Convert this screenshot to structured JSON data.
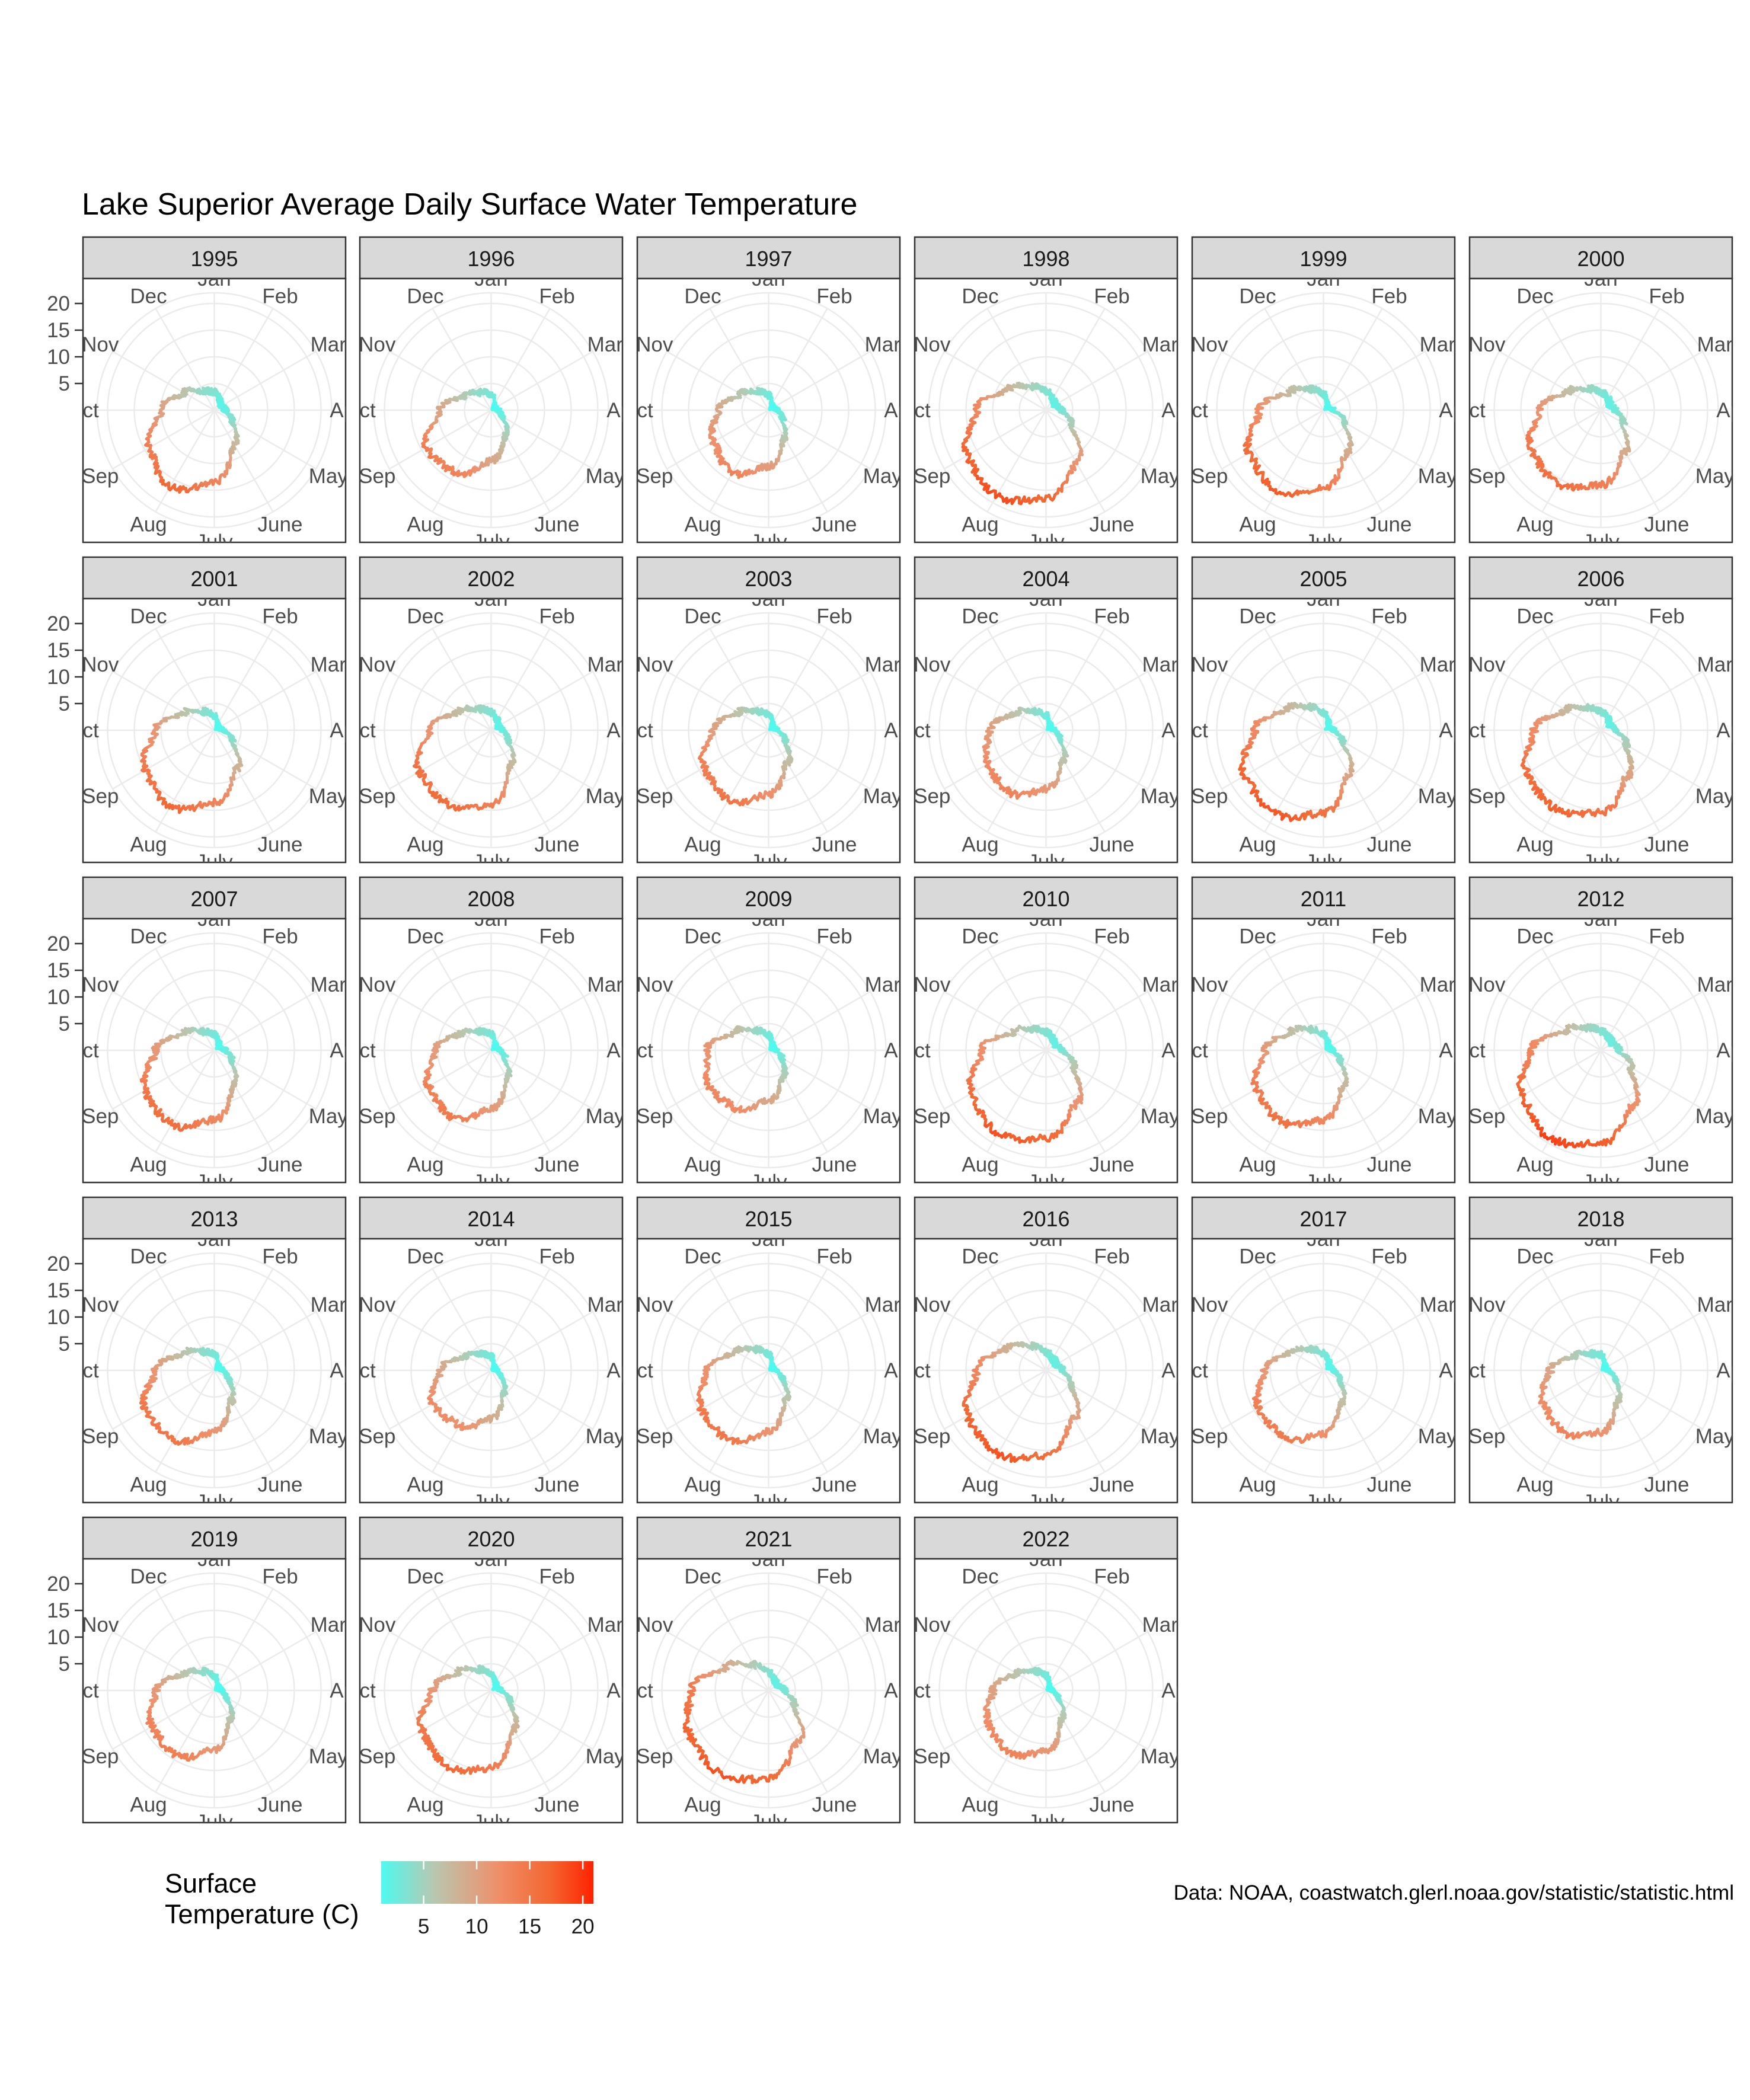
{
  "chart_data": {
    "type": "polar-line-faceted",
    "title": "Lake Superior Average Daily Surface Water Temperature",
    "caption": "Data: NOAA, coastwatch.glerl.noaa.gov/statistic/statistic.html",
    "angular_axis": {
      "labels": [
        "Jan",
        "Feb",
        "Mar",
        "Apr",
        "May",
        "June",
        "July",
        "Aug",
        "Sep",
        "Oct",
        "Nov",
        "Dec"
      ],
      "direction": "clockwise",
      "start": "top"
    },
    "radial_axis": {
      "ticks": [
        "5",
        "10",
        "15",
        "20"
      ],
      "tick_values": [
        5,
        10,
        15,
        20
      ],
      "range": [
        0,
        22
      ]
    },
    "legend": {
      "title_line1": "Surface",
      "title_line2": "Temperature (C)",
      "ticks": [
        "5",
        "10",
        "15",
        "20"
      ],
      "tick_values": [
        5,
        10,
        15,
        20
      ],
      "range": [
        1,
        21
      ],
      "colors": [
        "#4dfbf0",
        "#b8c7b0",
        "#ef8f6a",
        "#f3652f",
        "#ff2200"
      ],
      "placement": "bottom-left"
    },
    "monthly_pattern_description_free": true,
    "series": [
      {
        "year": "1995",
        "values": [
          3.4,
          2.0,
          1.5,
          2.0,
          3.8,
          7.5,
          13.5,
          16.5,
          14.0,
          10.0,
          6.5,
          4.0
        ]
      },
      {
        "year": "1996",
        "values": [
          3.0,
          1.0,
          0.8,
          1.2,
          2.3,
          5.5,
          9.5,
          13.5,
          14.0,
          9.5,
          5.5,
          3.8
        ]
      },
      {
        "year": "1997",
        "values": [
          2.8,
          1.0,
          0.8,
          1.5,
          3.0,
          6.0,
          10.5,
          13.5,
          12.0,
          9.5,
          6.0,
          4.0
        ]
      },
      {
        "year": "1998",
        "values": [
          3.6,
          2.5,
          2.0,
          2.8,
          5.5,
          11.5,
          16.5,
          18.5,
          17.0,
          13.0,
          8.0,
          5.0
        ]
      },
      {
        "year": "1999",
        "values": [
          3.0,
          1.2,
          0.8,
          1.8,
          4.5,
          9.0,
          14.5,
          17.5,
          16.0,
          12.0,
          7.0,
          4.5
        ]
      },
      {
        "year": "2000",
        "values": [
          3.4,
          2.5,
          2.0,
          2.6,
          4.8,
          9.0,
          14.0,
          16.0,
          15.0,
          11.5,
          7.0,
          4.5
        ]
      },
      {
        "year": "2001",
        "values": [
          2.8,
          1.0,
          0.8,
          1.5,
          4.0,
          8.5,
          13.5,
          16.5,
          15.0,
          11.0,
          6.5,
          4.0
        ]
      },
      {
        "year": "2002",
        "values": [
          3.4,
          2.2,
          1.5,
          2.0,
          3.6,
          7.5,
          14.0,
          16.0,
          15.5,
          11.5,
          7.0,
          4.5
        ]
      },
      {
        "year": "2003",
        "values": [
          3.0,
          1.2,
          0.8,
          1.5,
          3.5,
          7.0,
          12.0,
          15.0,
          14.0,
          10.5,
          6.5,
          4.0
        ]
      },
      {
        "year": "2004",
        "values": [
          2.8,
          1.2,
          0.8,
          1.5,
          3.0,
          6.5,
          11.0,
          13.5,
          12.5,
          10.5,
          6.5,
          4.0
        ]
      },
      {
        "year": "2005",
        "values": [
          3.2,
          1.8,
          1.0,
          1.8,
          4.0,
          9.5,
          15.5,
          18.0,
          17.0,
          13.0,
          8.0,
          5.0
        ]
      },
      {
        "year": "2006",
        "values": [
          3.4,
          2.5,
          2.0,
          2.8,
          5.5,
          10.0,
          15.5,
          17.0,
          16.0,
          12.5,
          7.5,
          4.8
        ]
      },
      {
        "year": "2007",
        "values": [
          3.0,
          1.5,
          1.0,
          2.0,
          3.8,
          7.5,
          13.0,
          16.0,
          15.0,
          11.0,
          6.5,
          4.0
        ]
      },
      {
        "year": "2008",
        "values": [
          3.0,
          1.2,
          0.8,
          1.5,
          3.0,
          6.0,
          11.0,
          14.5,
          13.5,
          10.5,
          6.5,
          4.0
        ]
      },
      {
        "year": "2009",
        "values": [
          2.8,
          1.2,
          0.8,
          1.2,
          2.8,
          5.5,
          9.5,
          12.5,
          13.0,
          11.5,
          7.0,
          4.2
        ]
      },
      {
        "year": "2010",
        "values": [
          3.4,
          2.5,
          2.0,
          3.0,
          6.0,
          11.5,
          16.5,
          18.0,
          16.0,
          12.0,
          7.0,
          4.5
        ]
      },
      {
        "year": "2011",
        "values": [
          3.0,
          1.5,
          1.0,
          1.5,
          3.5,
          7.5,
          13.0,
          15.5,
          14.5,
          11.0,
          7.0,
          4.5
        ]
      },
      {
        "year": "2012",
        "values": [
          3.6,
          2.8,
          2.5,
          3.5,
          6.5,
          12.0,
          17.5,
          19.0,
          17.0,
          13.0,
          7.5,
          4.8
        ]
      },
      {
        "year": "2013",
        "values": [
          3.0,
          1.2,
          0.8,
          1.5,
          3.0,
          6.5,
          11.5,
          15.0,
          15.0,
          11.0,
          6.5,
          4.0
        ]
      },
      {
        "year": "2014",
        "values": [
          2.6,
          0.8,
          0.6,
          0.8,
          2.0,
          5.0,
          9.0,
          12.0,
          12.5,
          9.5,
          5.5,
          3.5
        ]
      },
      {
        "year": "2015",
        "values": [
          3.0,
          1.0,
          0.8,
          1.2,
          3.0,
          6.5,
          11.5,
          15.0,
          14.5,
          11.5,
          7.0,
          4.5
        ]
      },
      {
        "year": "2016",
        "values": [
          3.4,
          2.5,
          2.2,
          3.0,
          5.5,
          10.5,
          16.0,
          18.0,
          17.0,
          13.0,
          8.5,
          5.2
        ]
      },
      {
        "year": "2017",
        "values": [
          3.2,
          1.8,
          1.2,
          1.8,
          3.5,
          7.0,
          12.0,
          14.5,
          14.0,
          11.0,
          7.0,
          4.5
        ]
      },
      {
        "year": "2018",
        "values": [
          3.0,
          1.2,
          0.8,
          1.2,
          3.0,
          6.5,
          11.5,
          13.5,
          12.5,
          9.5,
          5.5,
          3.5
        ]
      },
      {
        "year": "2019",
        "values": [
          2.8,
          1.0,
          0.8,
          1.2,
          2.5,
          6.0,
          11.0,
          14.0,
          13.5,
          11.0,
          6.5,
          4.0
        ]
      },
      {
        "year": "2020",
        "values": [
          3.0,
          1.5,
          1.0,
          1.8,
          4.0,
          8.5,
          14.5,
          16.5,
          15.0,
          11.0,
          7.0,
          4.5
        ]
      },
      {
        "year": "2021",
        "values": [
          3.4,
          2.2,
          1.8,
          3.0,
          5.5,
          11.0,
          16.5,
          18.0,
          17.0,
          14.5,
          9.0,
          5.5
        ]
      },
      {
        "year": "2022",
        "values": [
          2.8,
          1.0,
          0.6,
          1.0,
          2.5,
          6.0,
          11.5,
          13.5,
          12.5,
          10.0,
          6.5,
          4.0
        ]
      }
    ]
  }
}
